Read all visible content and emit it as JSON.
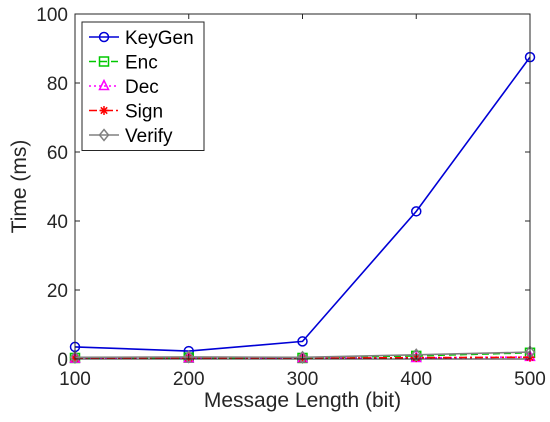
{
  "chart_data": {
    "type": "line",
    "title": "",
    "xlabel": "Message Length (bit)",
    "ylabel": "Time (ms)",
    "x": [
      100,
      200,
      300,
      400,
      500
    ],
    "xlim": [
      100,
      500
    ],
    "ylim": [
      0,
      100
    ],
    "xticks": [
      "100",
      "200",
      "300",
      "400",
      "500"
    ],
    "yticks": [
      "0",
      "20",
      "40",
      "60",
      "80",
      "100"
    ],
    "grid": false,
    "legend_position": "top-left",
    "series": [
      {
        "name": "KeyGen",
        "values": [
          3.5,
          2.3,
          5.1,
          42.8,
          87.5
        ],
        "color": "#0000d6",
        "line": "solid",
        "marker": "circle"
      },
      {
        "name": "Enc",
        "values": [
          0.3,
          0.4,
          0.3,
          0.9,
          1.8
        ],
        "color": "#00c800",
        "line": "dashed",
        "marker": "square"
      },
      {
        "name": "Dec",
        "values": [
          0.1,
          0.2,
          0.2,
          0.3,
          0.6
        ],
        "color": "#ff00ff",
        "line": "dotted",
        "marker": "triangle"
      },
      {
        "name": "Sign",
        "values": [
          0.2,
          0.3,
          0.2,
          0.4,
          0.5
        ],
        "color": "#ff0000",
        "line": "dashdot",
        "marker": "asterisk"
      },
      {
        "name": "Verify",
        "values": [
          0.5,
          0.6,
          0.5,
          1.2,
          2.0
        ],
        "color": "#808080",
        "line": "solid",
        "marker": "diamond"
      }
    ]
  }
}
